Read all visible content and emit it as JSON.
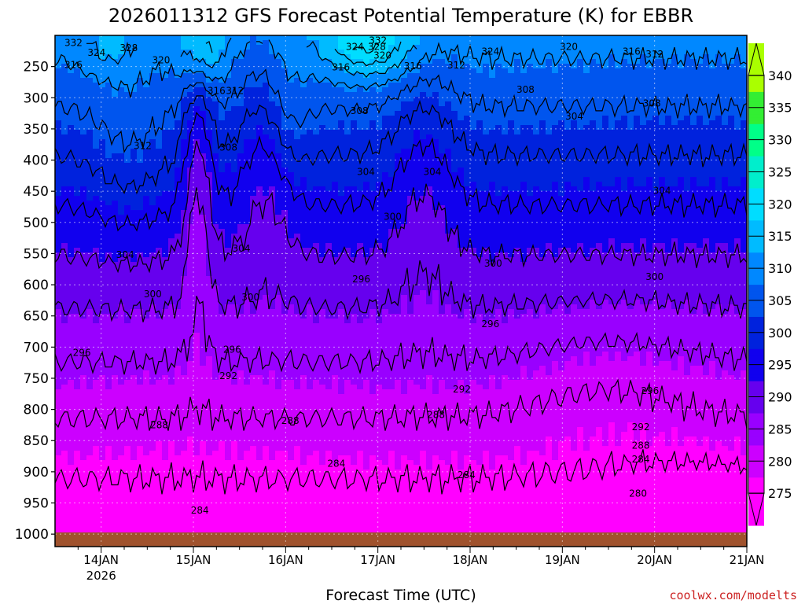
{
  "chart_data": {
    "type": "heatmap",
    "title": "2026011312 GFS Forecast Potential Temperature (K) for EBBR",
    "xlabel": "Forecast Time (UTC)",
    "ylabel": "",
    "credit": "coolwx.com/modelts",
    "x_ticks": [
      {
        "label": "14JAN",
        "sub": "2026",
        "day": 14.0
      },
      {
        "label": "15JAN",
        "sub": "",
        "day": 15.0
      },
      {
        "label": "16JAN",
        "sub": "",
        "day": 16.0
      },
      {
        "label": "17JAN",
        "sub": "",
        "day": 17.0
      },
      {
        "label": "18JAN",
        "sub": "",
        "day": 18.0
      },
      {
        "label": "19JAN",
        "sub": "",
        "day": 19.0
      },
      {
        "label": "20JAN",
        "sub": "",
        "day": 20.0
      },
      {
        "label": "21JAN",
        "sub": "",
        "day": 21.0
      }
    ],
    "xlim": [
      13.5,
      21.0
    ],
    "y_ticks": [
      250,
      300,
      350,
      400,
      450,
      500,
      550,
      600,
      650,
      700,
      750,
      800,
      850,
      900,
      950,
      1000
    ],
    "ylim": [
      200,
      1020
    ],
    "colorbar": {
      "levels": [
        340,
        335,
        330,
        325,
        320,
        315,
        310,
        305,
        300,
        295,
        290,
        285,
        280,
        275
      ],
      "min": 270,
      "max": 345,
      "colors": [
        {
          "value": 275,
          "color": "#ff00ff"
        },
        {
          "value": 280,
          "color": "#cc00ff"
        },
        {
          "value": 285,
          "color": "#9900ff"
        },
        {
          "value": 290,
          "color": "#6600ee"
        },
        {
          "value": 295,
          "color": "#1100ee"
        },
        {
          "value": 300,
          "color": "#0022dd"
        },
        {
          "value": 305,
          "color": "#0055ee"
        },
        {
          "value": 310,
          "color": "#0088ff"
        },
        {
          "value": 315,
          "color": "#00bbff"
        },
        {
          "value": 320,
          "color": "#00ddff"
        },
        {
          "value": 325,
          "color": "#00eecc"
        },
        {
          "value": 330,
          "color": "#00ff88"
        },
        {
          "value": 335,
          "color": "#33ee33"
        },
        {
          "value": 340,
          "color": "#aaff00"
        }
      ]
    },
    "contour_interval": 4,
    "contour_labels": [
      {
        "text": "332",
        "day": 13.7,
        "p": 212
      },
      {
        "text": "324",
        "day": 13.95,
        "p": 228
      },
      {
        "text": "328",
        "day": 14.3,
        "p": 220
      },
      {
        "text": "316",
        "day": 13.7,
        "p": 247
      },
      {
        "text": "320",
        "day": 14.65,
        "p": 240
      },
      {
        "text": "332",
        "day": 17.0,
        "p": 208
      },
      {
        "text": "324",
        "day": 16.75,
        "p": 218
      },
      {
        "text": "328",
        "day": 16.99,
        "p": 218
      },
      {
        "text": "320",
        "day": 17.05,
        "p": 232
      },
      {
        "text": "316",
        "day": 16.6,
        "p": 251
      },
      {
        "text": "316",
        "day": 17.38,
        "p": 249
      },
      {
        "text": "312",
        "day": 17.85,
        "p": 248
      },
      {
        "text": "324",
        "day": 18.22,
        "p": 226
      },
      {
        "text": "320",
        "day": 19.07,
        "p": 218
      },
      {
        "text": "316",
        "day": 19.75,
        "p": 226
      },
      {
        "text": "312",
        "day": 20.0,
        "p": 230
      },
      {
        "text": "316",
        "day": 15.25,
        "p": 289
      },
      {
        "text": "312",
        "day": 15.45,
        "p": 289
      },
      {
        "text": "308",
        "day": 18.6,
        "p": 287
      },
      {
        "text": "308",
        "day": 16.8,
        "p": 321
      },
      {
        "text": "308",
        "day": 19.97,
        "p": 309
      },
      {
        "text": "304",
        "day": 19.13,
        "p": 330
      },
      {
        "text": "312",
        "day": 14.45,
        "p": 377
      },
      {
        "text": "308",
        "day": 15.38,
        "p": 380
      },
      {
        "text": "304",
        "day": 16.87,
        "p": 419
      },
      {
        "text": "304",
        "day": 17.59,
        "p": 419
      },
      {
        "text": "304",
        "day": 20.08,
        "p": 449
      },
      {
        "text": "300",
        "day": 17.16,
        "p": 491
      },
      {
        "text": "304",
        "day": 14.26,
        "p": 552
      },
      {
        "text": "304",
        "day": 15.52,
        "p": 542
      },
      {
        "text": "300",
        "day": 14.56,
        "p": 615
      },
      {
        "text": "300",
        "day": 15.62,
        "p": 620
      },
      {
        "text": "300",
        "day": 18.25,
        "p": 566
      },
      {
        "text": "300",
        "day": 20.0,
        "p": 587
      },
      {
        "text": "296",
        "day": 16.82,
        "p": 591
      },
      {
        "text": "296",
        "day": 18.22,
        "p": 663
      },
      {
        "text": "296",
        "day": 13.79,
        "p": 709
      },
      {
        "text": "296",
        "day": 15.42,
        "p": 704
      },
      {
        "text": "292",
        "day": 15.38,
        "p": 746
      },
      {
        "text": "292",
        "day": 17.91,
        "p": 768
      },
      {
        "text": "296",
        "day": 19.95,
        "p": 770
      },
      {
        "text": "288",
        "day": 14.63,
        "p": 825
      },
      {
        "text": "288",
        "day": 16.05,
        "p": 818
      },
      {
        "text": "288",
        "day": 17.63,
        "p": 809
      },
      {
        "text": "292",
        "day": 19.85,
        "p": 828
      },
      {
        "text": "288",
        "day": 19.85,
        "p": 858
      },
      {
        "text": "284",
        "day": 19.85,
        "p": 880
      },
      {
        "text": "284",
        "day": 16.55,
        "p": 887
      },
      {
        "text": "284",
        "day": 17.96,
        "p": 905
      },
      {
        "text": "280",
        "day": 19.82,
        "p": 935
      },
      {
        "text": "284",
        "day": 15.07,
        "p": 962
      }
    ]
  }
}
